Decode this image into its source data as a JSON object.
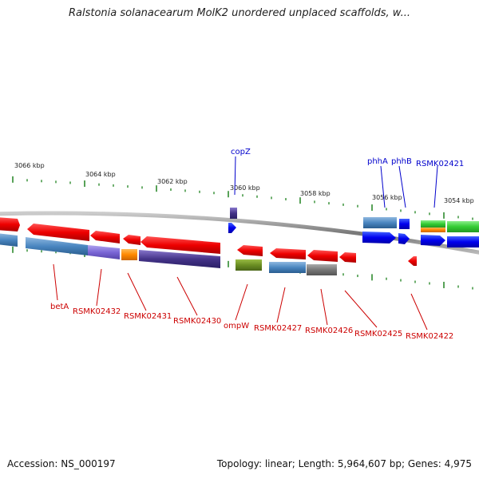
{
  "title": "Ralstonia solanacearum MolK2 unordered unplaced scaffolds, w...",
  "footer": {
    "accession": "Accession: NS_000197",
    "stats": "Topology: linear; Length: 5,964,607 bp; Genes: 4,975"
  },
  "colors": {
    "backbone": "#8c8c8c",
    "tick": "#2e8b2e",
    "upper_label": "#0000cc",
    "lower_label": "#cc0000"
  },
  "kbp_labels": [
    "3066 kbp",
    "3064 kbp",
    "3062 kbp",
    "3060 kbp",
    "3058 kbp",
    "3056 kbp",
    "3054 kbp"
  ],
  "upper_gene_labels": [
    "copZ",
    "phhA",
    "phhB",
    "RSMK02421"
  ],
  "lower_gene_labels": [
    "betA",
    "RSMK02432",
    "RSMK02431",
    "RSMK02430",
    "ompW",
    "RSMK02427",
    "RSMK02426",
    "RSMK02425",
    "RSMK02422"
  ]
}
